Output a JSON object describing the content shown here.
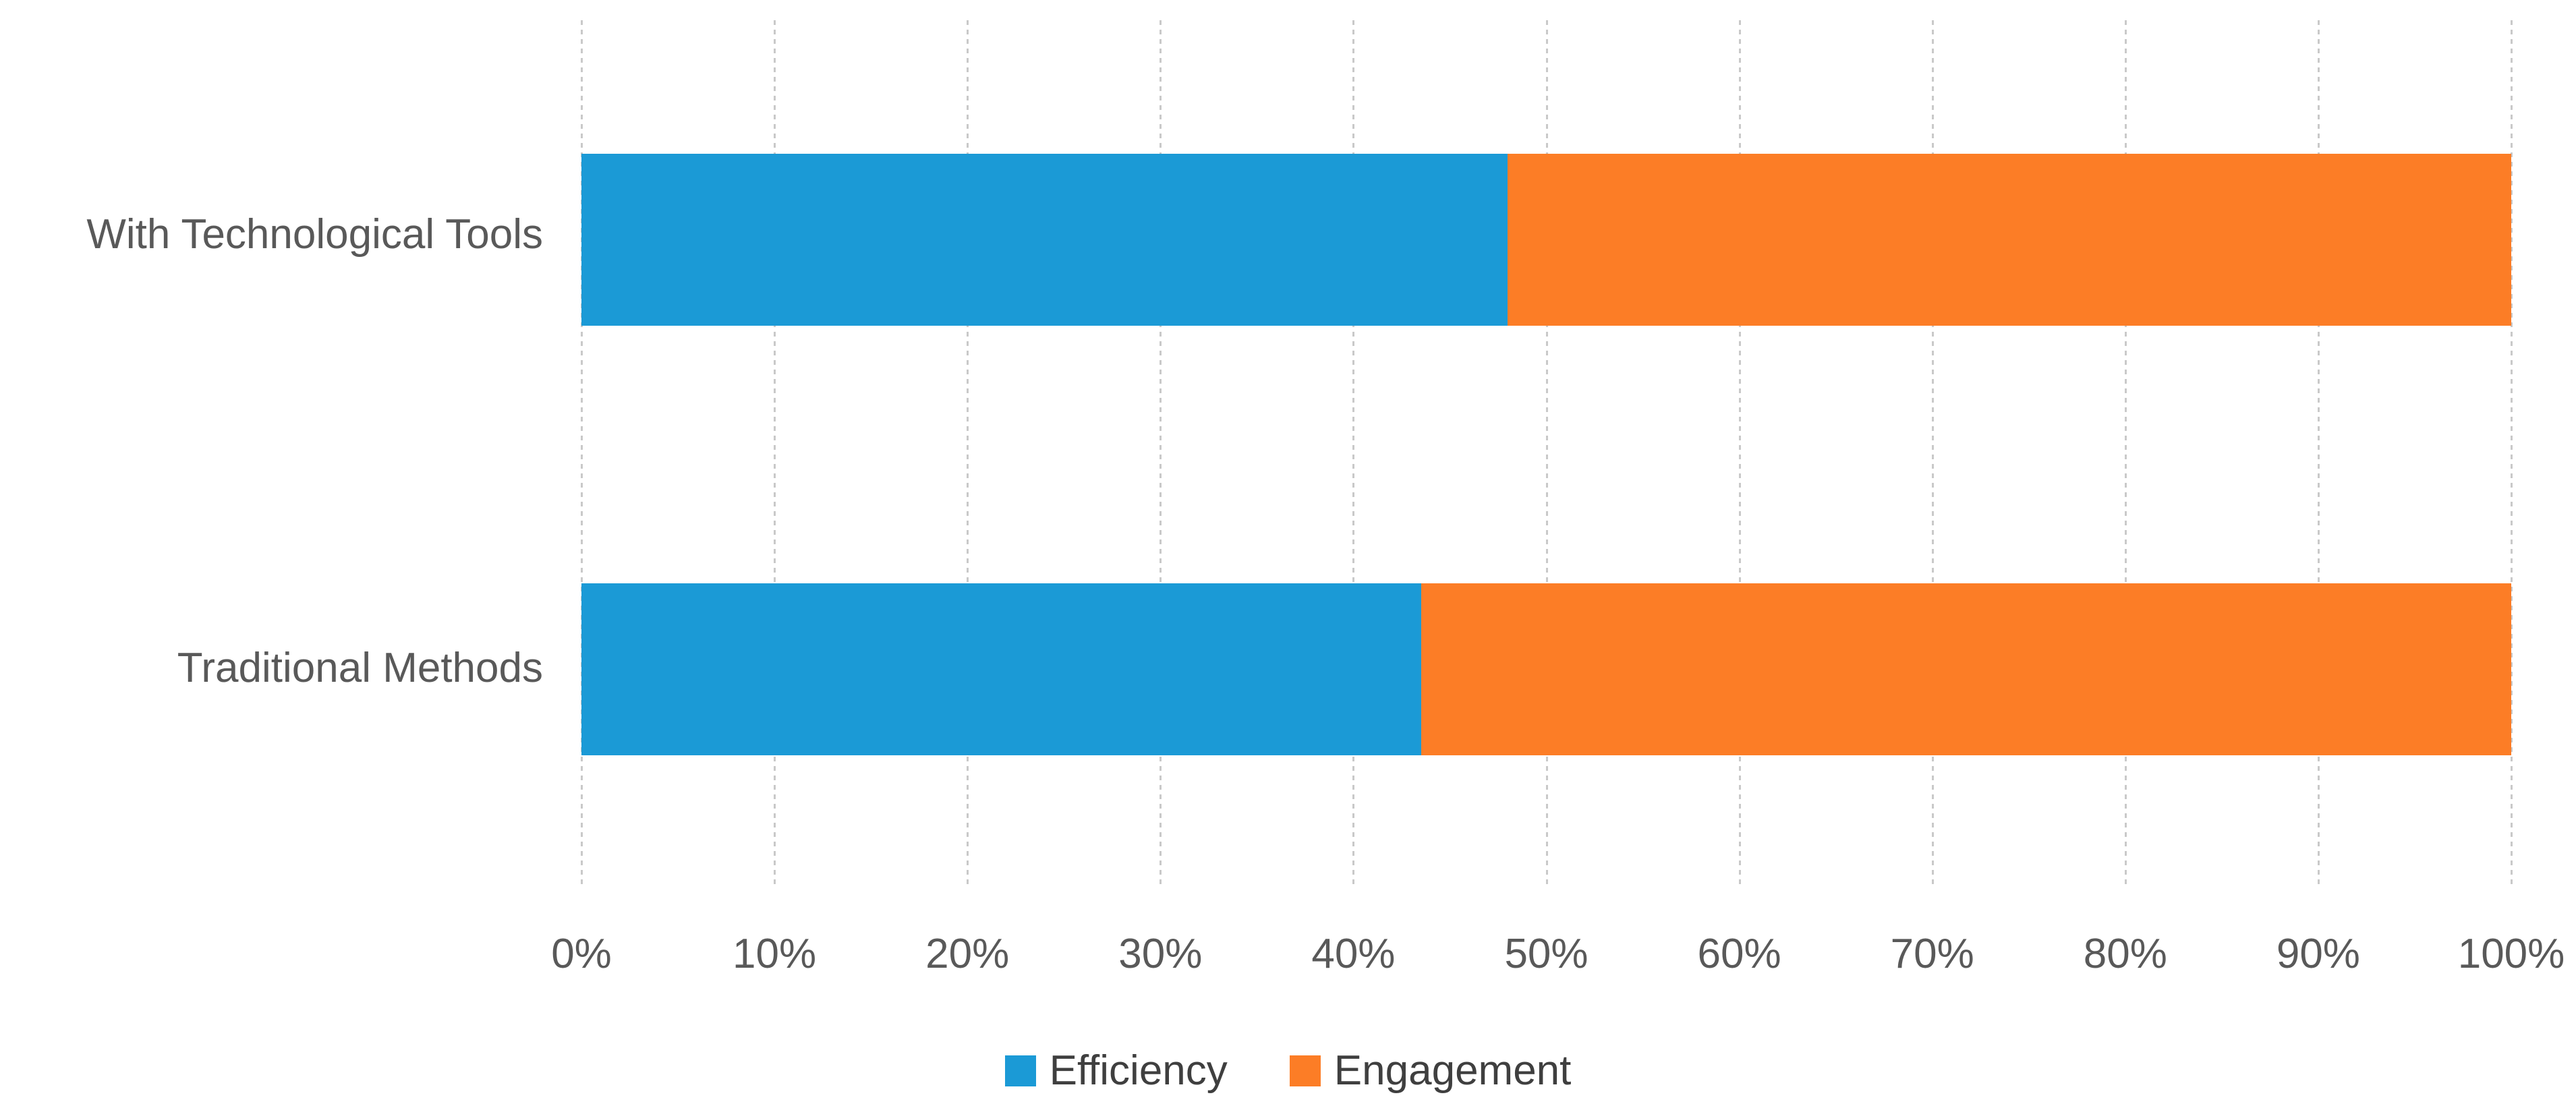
{
  "chart_data": {
    "type": "bar",
    "subtype": "horizontal-100pct-stacked",
    "title": "",
    "xlabel": "",
    "ylabel": "",
    "categories": [
      "With Technological Tools",
      "Traditional Methods"
    ],
    "series": [
      {
        "name": "Efficiency",
        "color": "#1b9ad6",
        "values": [
          48,
          43.5
        ]
      },
      {
        "name": "Engagement",
        "color": "#fc7d26",
        "values": [
          52,
          56.5
        ]
      }
    ],
    "x_ticks": [
      "0%",
      "10%",
      "20%",
      "30%",
      "40%",
      "50%",
      "60%",
      "70%",
      "80%",
      "90%",
      "100%"
    ],
    "xlim": [
      0,
      100
    ],
    "grid": "vertical-dashed",
    "gridline_color": "#c9c9c9",
    "axis_text_color": "#595959",
    "legend_text_color": "#3f3f3f",
    "legend_position": "bottom-center",
    "background": "#ffffff"
  }
}
